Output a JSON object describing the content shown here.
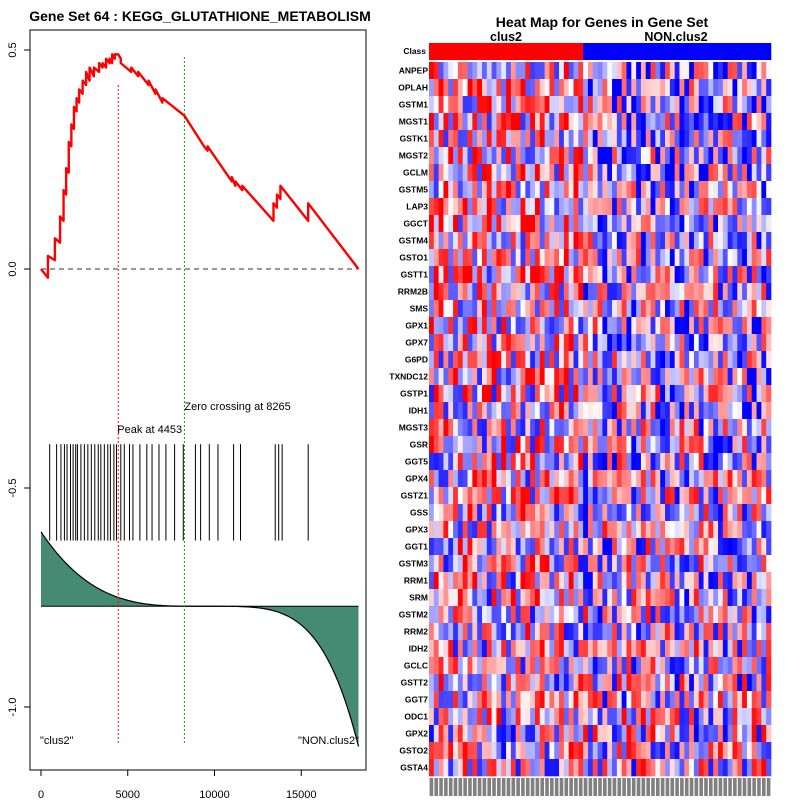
{
  "chart_data": [
    {
      "type": "line",
      "title": "Gene Set  64 : KEGG_GLUTATHIONE_METABOLISM",
      "xlim": [
        0,
        18500
      ],
      "ylim": [
        -1.08,
        0.52
      ],
      "x_ticks": [
        0,
        5000,
        10000,
        15000
      ],
      "x_tick_labels": [
        "0",
        "5000",
        "10000",
        "15000"
      ],
      "y_ticks": [
        0.5,
        0.0,
        -0.5,
        -1.0
      ],
      "y_tick_labels": [
        "0.5",
        "0.0",
        "-0.5",
        "-1.0"
      ],
      "enrichment_score": {
        "name": "running enrichment score",
        "color": "#ff0000",
        "x": [
          0,
          400,
          400,
          800,
          800,
          1100,
          1100,
          1300,
          1300,
          1450,
          1450,
          1600,
          1600,
          1750,
          1750,
          1900,
          1900,
          2050,
          2050,
          2200,
          2200,
          2400,
          2400,
          2600,
          2600,
          2800,
          2800,
          3050,
          3050,
          3350,
          3350,
          3550,
          3550,
          3750,
          3750,
          3950,
          3950,
          4100,
          4100,
          4250,
          4250,
          4453,
          4600,
          4600,
          5200,
          5200,
          5600,
          5600,
          6200,
          6200,
          6600,
          6600,
          7000,
          7000,
          8265,
          9400,
          9600,
          9600,
          11000,
          11000,
          11200,
          11200,
          11600,
          11600,
          13400,
          13400,
          13600,
          13600,
          13800,
          13800,
          15400,
          15400,
          18300
        ],
        "y": [
          0.0,
          -0.02,
          0.03,
          0.02,
          0.07,
          0.06,
          0.12,
          0.11,
          0.18,
          0.17,
          0.23,
          0.22,
          0.29,
          0.28,
          0.33,
          0.32,
          0.37,
          0.36,
          0.39,
          0.38,
          0.41,
          0.4,
          0.43,
          0.42,
          0.45,
          0.43,
          0.46,
          0.44,
          0.46,
          0.45,
          0.47,
          0.46,
          0.47,
          0.46,
          0.48,
          0.47,
          0.48,
          0.47,
          0.49,
          0.48,
          0.49,
          0.49,
          0.48,
          0.47,
          0.45,
          0.46,
          0.44,
          0.45,
          0.42,
          0.43,
          0.4,
          0.41,
          0.38,
          0.39,
          0.35,
          0.28,
          0.27,
          0.28,
          0.2,
          0.21,
          0.19,
          0.2,
          0.18,
          0.19,
          0.11,
          0.15,
          0.14,
          0.17,
          0.16,
          0.19,
          0.11,
          0.15,
          0.0
        ]
      },
      "baseline": {
        "y": 0.0,
        "style": "dashed",
        "color": "#000000"
      },
      "peak": {
        "x": 4453,
        "label": "Peak at 4453",
        "color": "#ff0000"
      },
      "zero_crossing": {
        "x": 8265,
        "label": "Zero crossing at 8265",
        "color": "#00aa00"
      },
      "hit_positions": [
        500,
        900,
        1150,
        1350,
        1500,
        1700,
        1850,
        2000,
        2100,
        2300,
        2500,
        2700,
        2900,
        3100,
        3300,
        3450,
        3650,
        3850,
        4000,
        4200,
        4350,
        4600,
        4800,
        5100,
        5300,
        5700,
        6100,
        6400,
        6800,
        7200,
        7700,
        8200,
        8900,
        9200,
        9700,
        10200,
        11100,
        11500,
        13500,
        13700,
        13900,
        15400
      ],
      "hits_y_range": [
        -0.62,
        -0.4
      ],
      "ranked_metric": {
        "name": "ranked list metric",
        "fill_color": "#458b74",
        "baseline_y": -0.77,
        "start_y": -0.6,
        "end_y": -1.09
      },
      "class_labels": {
        "left": "\"clus2\"",
        "right": "\"NON.clus2\""
      }
    },
    {
      "type": "heatmap",
      "title": "Heat Map for Genes in Gene Set",
      "class_row_label": "Class",
      "classes": [
        {
          "name": "clus2",
          "color": "#ff0000",
          "columns": 32
        },
        {
          "name": "NON.clus2",
          "color": "#0000ff",
          "columns": 39
        }
      ],
      "n_columns": 71,
      "rows": [
        "ANPEP",
        "OPLAH",
        "GSTM1",
        "MGST1",
        "GSTK1",
        "MGST2",
        "GCLM",
        "GSTM5",
        "LAP3",
        "GGCT",
        "GSTM4",
        "GSTO1",
        "GSTT1",
        "RRM2B",
        "SMS",
        "GPX1",
        "GPX7",
        "G6PD",
        "TXNDC12",
        "GSTP1",
        "IDH1",
        "MGST3",
        "GSR",
        "GGT5",
        "GPX4",
        "GSTZ1",
        "GSS",
        "GPX3",
        "GGT1",
        "GSTM3",
        "RRM1",
        "SRM",
        "GSTM2",
        "RRM2",
        "IDH2",
        "GCLC",
        "GSTT2",
        "GGT7",
        "ODC1",
        "GPX2",
        "GSTO2",
        "GSTA4"
      ],
      "color_scale": [
        "#0000ff",
        "#ffffff",
        "#ff0000"
      ]
    }
  ]
}
